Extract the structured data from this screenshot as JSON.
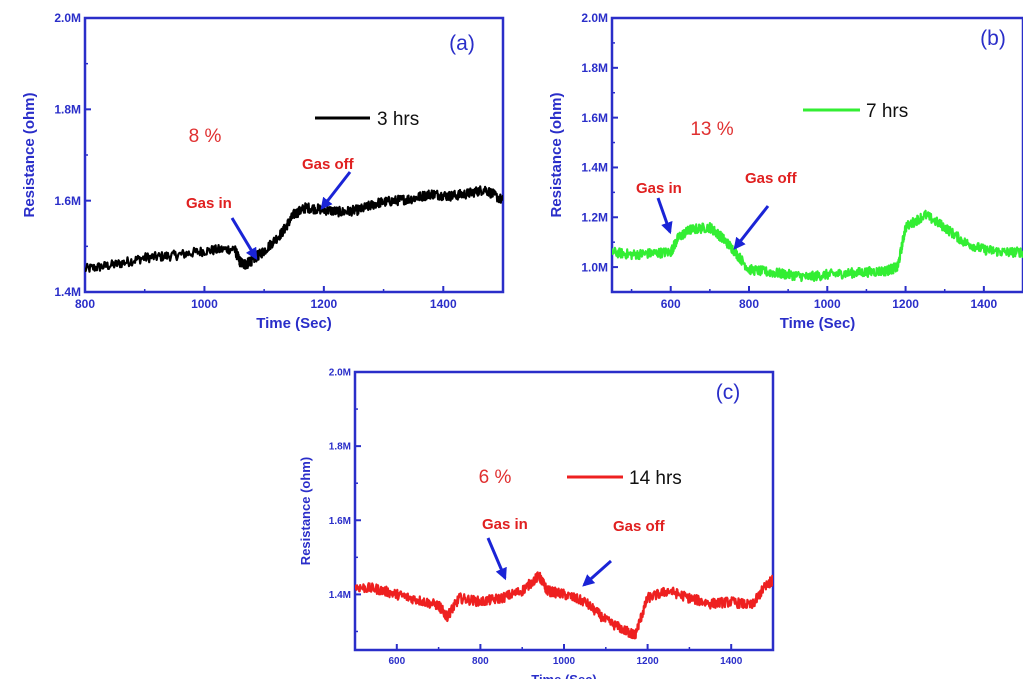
{
  "chart_data": [
    {
      "type": "line",
      "panel_label": "(a)",
      "percent_label": "8 %",
      "xlabel": "Time (Sec)",
      "ylabel": "Resistance (ohm)",
      "xlim": [
        800,
        1500
      ],
      "ylim": [
        1400000,
        2000000
      ],
      "xticks": [
        800,
        1000,
        1200,
        1400
      ],
      "xtick_labels": [
        "800",
        "1000",
        "1200",
        "1400"
      ],
      "yticks": [
        1400000,
        1600000,
        1800000,
        2000000
      ],
      "ytick_labels": [
        "1.4M",
        "1.6M",
        "1.8M",
        "2.0M"
      ],
      "series": [
        {
          "name": "3 hrs",
          "color": "#000000",
          "x": [
            800,
            850,
            900,
            950,
            1000,
            1050,
            1060,
            1070,
            1080,
            1100,
            1130,
            1150,
            1170,
            1200,
            1230,
            1260,
            1290,
            1320,
            1350,
            1380,
            1410,
            1440,
            1470,
            1500
          ],
          "y": [
            1450000,
            1460000,
            1475000,
            1480000,
            1490000,
            1495000,
            1465000,
            1460000,
            1470000,
            1490000,
            1530000,
            1570000,
            1585000,
            1580000,
            1575000,
            1580000,
            1595000,
            1600000,
            1605000,
            1615000,
            1610000,
            1615000,
            1625000,
            1600000
          ]
        }
      ],
      "annotations": [
        {
          "text": "Gas in",
          "x": 1080,
          "y": 1470000
        },
        {
          "text": "Gas off",
          "x": 1195,
          "y": 1580000
        }
      ],
      "legend_position": "top-right"
    },
    {
      "type": "line",
      "panel_label": "(b)",
      "percent_label": "13 %",
      "xlabel": "Time (Sec)",
      "ylabel": "Resistance (ohm)",
      "xlim": [
        450,
        1500
      ],
      "ylim": [
        900000,
        2000000
      ],
      "xticks": [
        600,
        800,
        1000,
        1200,
        1400
      ],
      "xtick_labels": [
        "600",
        "800",
        "1000",
        "1200",
        "1400"
      ],
      "yticks": [
        1000000,
        1200000,
        1400000,
        1600000,
        1800000,
        2000000
      ],
      "ytick_labels": [
        "1.0M",
        "1.2M",
        "1.4M",
        "1.6M",
        "1.8M",
        "2.0M"
      ],
      "series": [
        {
          "name": "7 hrs",
          "color": "#33ee33",
          "x": [
            450,
            500,
            550,
            600,
            620,
            650,
            700,
            730,
            760,
            800,
            850,
            900,
            950,
            1000,
            1050,
            1100,
            1150,
            1180,
            1200,
            1250,
            1300,
            1350,
            1400,
            1450,
            1500
          ],
          "y": [
            1060000,
            1050000,
            1055000,
            1060000,
            1120000,
            1150000,
            1160000,
            1120000,
            1070000,
            990000,
            980000,
            970000,
            960000,
            970000,
            975000,
            980000,
            985000,
            1000000,
            1160000,
            1210000,
            1160000,
            1100000,
            1070000,
            1060000,
            1060000
          ]
        }
      ],
      "annotations": [
        {
          "text": "Gas in",
          "x": 615,
          "y": 1140000
        },
        {
          "text": "Gas off",
          "x": 760,
          "y": 1080000
        }
      ],
      "legend_position": "top-right"
    },
    {
      "type": "line",
      "panel_label": "(c)",
      "percent_label": "6 %",
      "xlabel": "Time (Sec)",
      "ylabel": "Resistance (ohm)",
      "xlim": [
        500,
        1500
      ],
      "ylim": [
        1250000,
        2000000
      ],
      "xticks": [
        600,
        800,
        1000,
        1200,
        1400
      ],
      "xtick_labels": [
        "600",
        "800",
        "1000",
        "1200",
        "1400"
      ],
      "yticks": [
        1400000,
        1600000,
        1800000,
        2000000
      ],
      "ytick_labels": [
        "1.4M",
        "1.6M",
        "1.8M",
        "2.0M"
      ],
      "series": [
        {
          "name": "14 hrs",
          "color": "#ee2020",
          "x": [
            500,
            550,
            600,
            650,
            700,
            720,
            750,
            800,
            850,
            900,
            940,
            960,
            1000,
            1050,
            1100,
            1150,
            1170,
            1200,
            1250,
            1300,
            1350,
            1400,
            1450,
            1480,
            1500
          ],
          "y": [
            1420000,
            1415000,
            1400000,
            1385000,
            1370000,
            1340000,
            1390000,
            1380000,
            1390000,
            1410000,
            1450000,
            1410000,
            1400000,
            1380000,
            1330000,
            1300000,
            1290000,
            1390000,
            1410000,
            1390000,
            1375000,
            1380000,
            1370000,
            1420000,
            1440000
          ]
        }
      ],
      "annotations": [
        {
          "text": "Gas in",
          "x": 855,
          "y": 1410000
        },
        {
          "text": "Gas off",
          "x": 1040,
          "y": 1390000
        }
      ],
      "legend_position": "top-right"
    }
  ]
}
